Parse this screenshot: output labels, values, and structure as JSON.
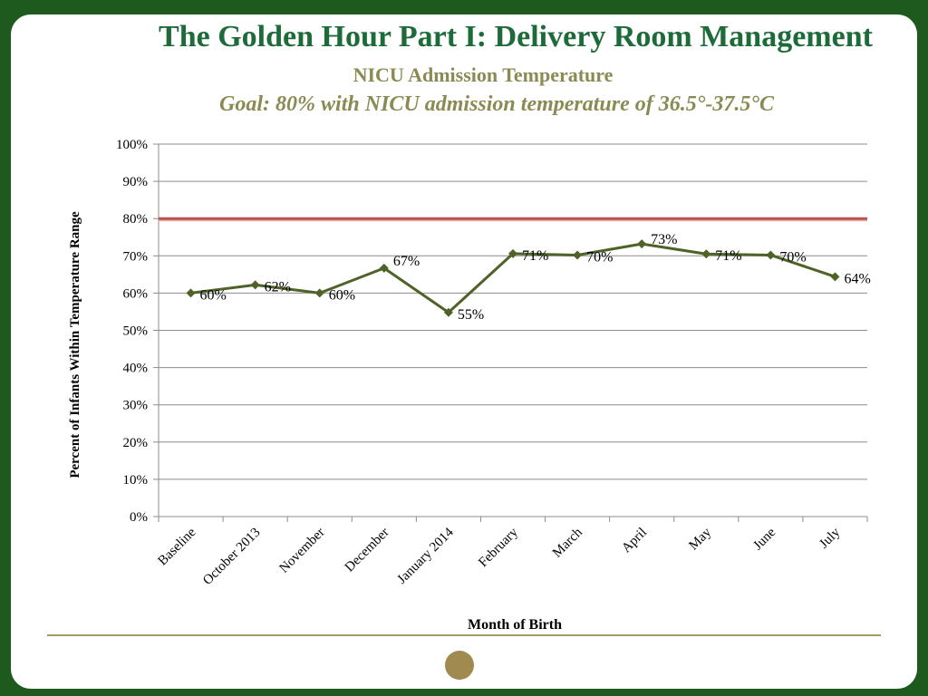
{
  "title": "The Golden Hour Part I: Delivery Room Management",
  "subtitle": "NICU Admission Temperature",
  "goal": {
    "label": "Goal:",
    "text": " 80% with NICU admission temperature of 36.5°-37.5°C"
  },
  "chart_data": {
    "type": "line",
    "categories": [
      "Baseline",
      "October 2013",
      "November",
      "December",
      "January 2014",
      "February",
      "March",
      "April",
      "May",
      "June",
      "July"
    ],
    "values": [
      60,
      62,
      60,
      67,
      55,
      71,
      70,
      73,
      71,
      70,
      64
    ],
    "data_labels": [
      "60%",
      "62%",
      "60%",
      "67%",
      "55%",
      "71%",
      "70%",
      "73%",
      "71%",
      "70%",
      "64%"
    ],
    "plotted_values": [
      60,
      62.2,
      60,
      66.7,
      54.8,
      70.6,
      70.2,
      73.2,
      70.5,
      70.2,
      64.4
    ],
    "goal_line": 80,
    "ylim": [
      0,
      100
    ],
    "yticks": [
      "0%",
      "10%",
      "20%",
      "30%",
      "40%",
      "50%",
      "60%",
      "70%",
      "80%",
      "90%",
      "100%"
    ],
    "ylabel": "Percent of Infants Within Temperature Range",
    "xlabel": "Month of Birth",
    "grid": true,
    "legend": "none",
    "colors": {
      "series": "#4f6228",
      "goal": "#c0504d"
    }
  }
}
